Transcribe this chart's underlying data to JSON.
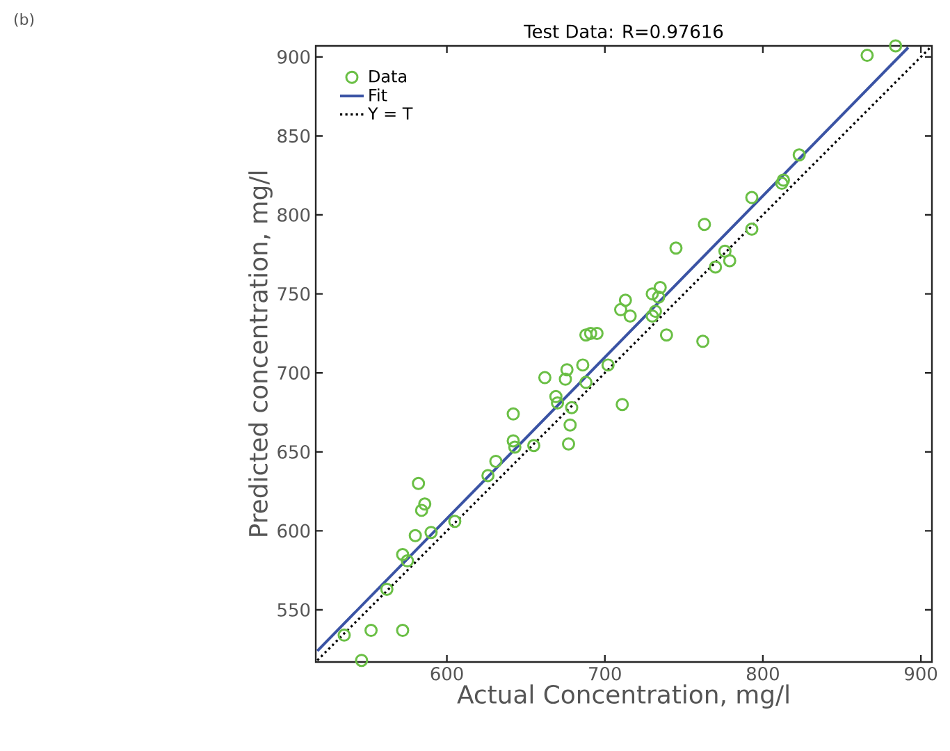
{
  "chart_data": {
    "type": "scatter",
    "title": "Test Data: R=0.97616",
    "xlabel": "Actual Concentration, mg/l",
    "ylabel": "Predicted concentration, mg/l",
    "annotations": [
      "(b)"
    ],
    "xlim": [
      517,
      907
    ],
    "ylim": [
      517,
      907
    ],
    "xticks": [
      600,
      700,
      800,
      900
    ],
    "yticks": [
      550,
      600,
      650,
      700,
      750,
      800,
      850,
      900
    ],
    "grid": false,
    "legend": "top left",
    "series": [
      {
        "name": "Data",
        "marker": "circle",
        "color": "#6abf45",
        "x": [
          866,
          884,
          823,
          813,
          812,
          793,
          763,
          793,
          745,
          776,
          779,
          770,
          730,
          735,
          734,
          713,
          710,
          716,
          730,
          732,
          739,
          762,
          702,
          686,
          676,
          675,
          662,
          688,
          711,
          669,
          670,
          679,
          678,
          677,
          642,
          642,
          643,
          655,
          631,
          626,
          582,
          586,
          584,
          605,
          590,
          580,
          572,
          575,
          562,
          535,
          552,
          572,
          546,
          688,
          691,
          695
        ],
        "values": [
          901,
          907,
          838,
          822,
          820,
          811,
          794,
          791,
          779,
          777,
          771,
          767,
          750,
          754,
          748,
          746,
          740,
          736,
          736,
          739,
          724,
          720,
          705,
          705,
          702,
          696,
          697,
          694,
          680,
          685,
          681,
          678,
          667,
          655,
          674,
          657,
          653,
          654,
          644,
          635,
          630,
          617,
          613,
          606,
          599,
          597,
          585,
          581,
          563,
          534,
          537,
          537,
          518,
          724,
          725,
          725
        ]
      },
      {
        "name": "Fit",
        "type": "line",
        "marker": "none",
        "line_style": "solid",
        "color": "#3a53a4",
        "x": [
          518,
          892
        ],
        "values": [
          524,
          906
        ]
      },
      {
        "name": "Y = T",
        "type": "line",
        "marker": "none",
        "line_style": "dotted",
        "color": "#000000",
        "x": [
          518,
          907
        ],
        "values": [
          518,
          907
        ]
      }
    ]
  }
}
